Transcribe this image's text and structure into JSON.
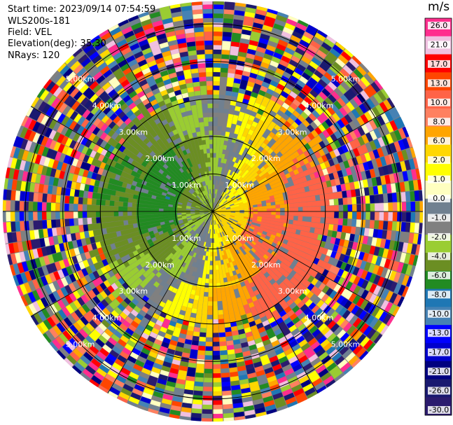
{
  "header": {
    "start_time": "Start time: 2023/09/14 07:54:59",
    "instrument": "WLS200s-181",
    "field": "Field: VEL",
    "elevation": "Elevation(deg): 35.30",
    "nrays": "NRays: 120"
  },
  "chart_data": {
    "type": "heatmap",
    "subtype": "polar-ppi",
    "field": "VEL",
    "n_rays": 120,
    "elevation_deg": 35.3,
    "range_ring_labels": [
      "1.00km",
      "2.00km",
      "3.00km",
      "4.00km",
      "5.00km"
    ],
    "range_rings_km": [
      1,
      2,
      3,
      4,
      5
    ],
    "max_range_km": 5.6,
    "colorbar": {
      "unit": "m/s",
      "tick_labels": [
        "26.0",
        "21.0",
        "17.0",
        "13.0",
        "10.0",
        "8.0",
        "6.0",
        "2.0",
        "1.0",
        "0.0",
        "-1.0",
        "-2.0",
        "-4.0",
        "-6.0",
        "-8.0",
        "-10.0",
        "-13.0",
        "-17.0",
        "-21.0",
        "-26.0",
        "-30.0"
      ],
      "colors": [
        "#ff2e8e",
        "#f0c0e0",
        "#ff0000",
        "#ff4500",
        "#ff6347",
        "#ff8060",
        "#ffa500",
        "#ffd700",
        "#ffff00",
        "#ffffc0",
        "#708090",
        "#808080",
        "#9acd32",
        "#6b8e23",
        "#228b22",
        "#1f77b4",
        "#4682b4",
        "#0000ff",
        "#0000cd",
        "#000080",
        "#191970",
        "#2b1b6e"
      ]
    },
    "structure": {
      "inner_field_km": [
        0,
        1.0
      ],
      "coherent_field_km": [
        0,
        3.2
      ],
      "noise_beyond_km": 3.2,
      "pattern": "positive velocities (yellow/orange) toward east-southeast and south, negative (green) toward west-northwest, gray near-zero band in between"
    },
    "grid": true
  }
}
